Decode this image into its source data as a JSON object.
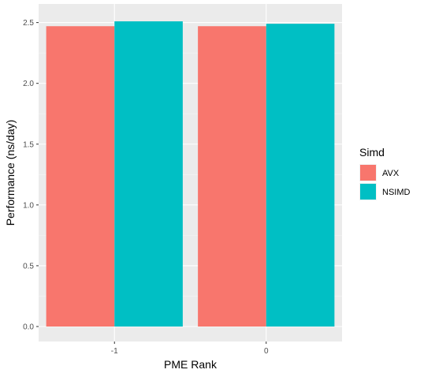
{
  "chart_data": {
    "type": "bar",
    "categories": [
      "-1",
      "0"
    ],
    "series": [
      {
        "name": "AVX",
        "values": [
          2.47,
          2.47
        ],
        "color": "#F8766D"
      },
      {
        "name": "NSIMD",
        "values": [
          2.51,
          2.49
        ],
        "color": "#00BFC4"
      }
    ],
    "title": "",
    "xlabel": "PME Rank",
    "ylabel": "Performance (ns/day)",
    "ylim": [
      0,
      2.5
    ],
    "yticks": [
      "0.0",
      "0.5",
      "1.0",
      "1.5",
      "2.0",
      "2.5"
    ],
    "legend": {
      "title": "Simd",
      "position": "right"
    },
    "grid": true,
    "panel_background": "#EBEBEB"
  }
}
